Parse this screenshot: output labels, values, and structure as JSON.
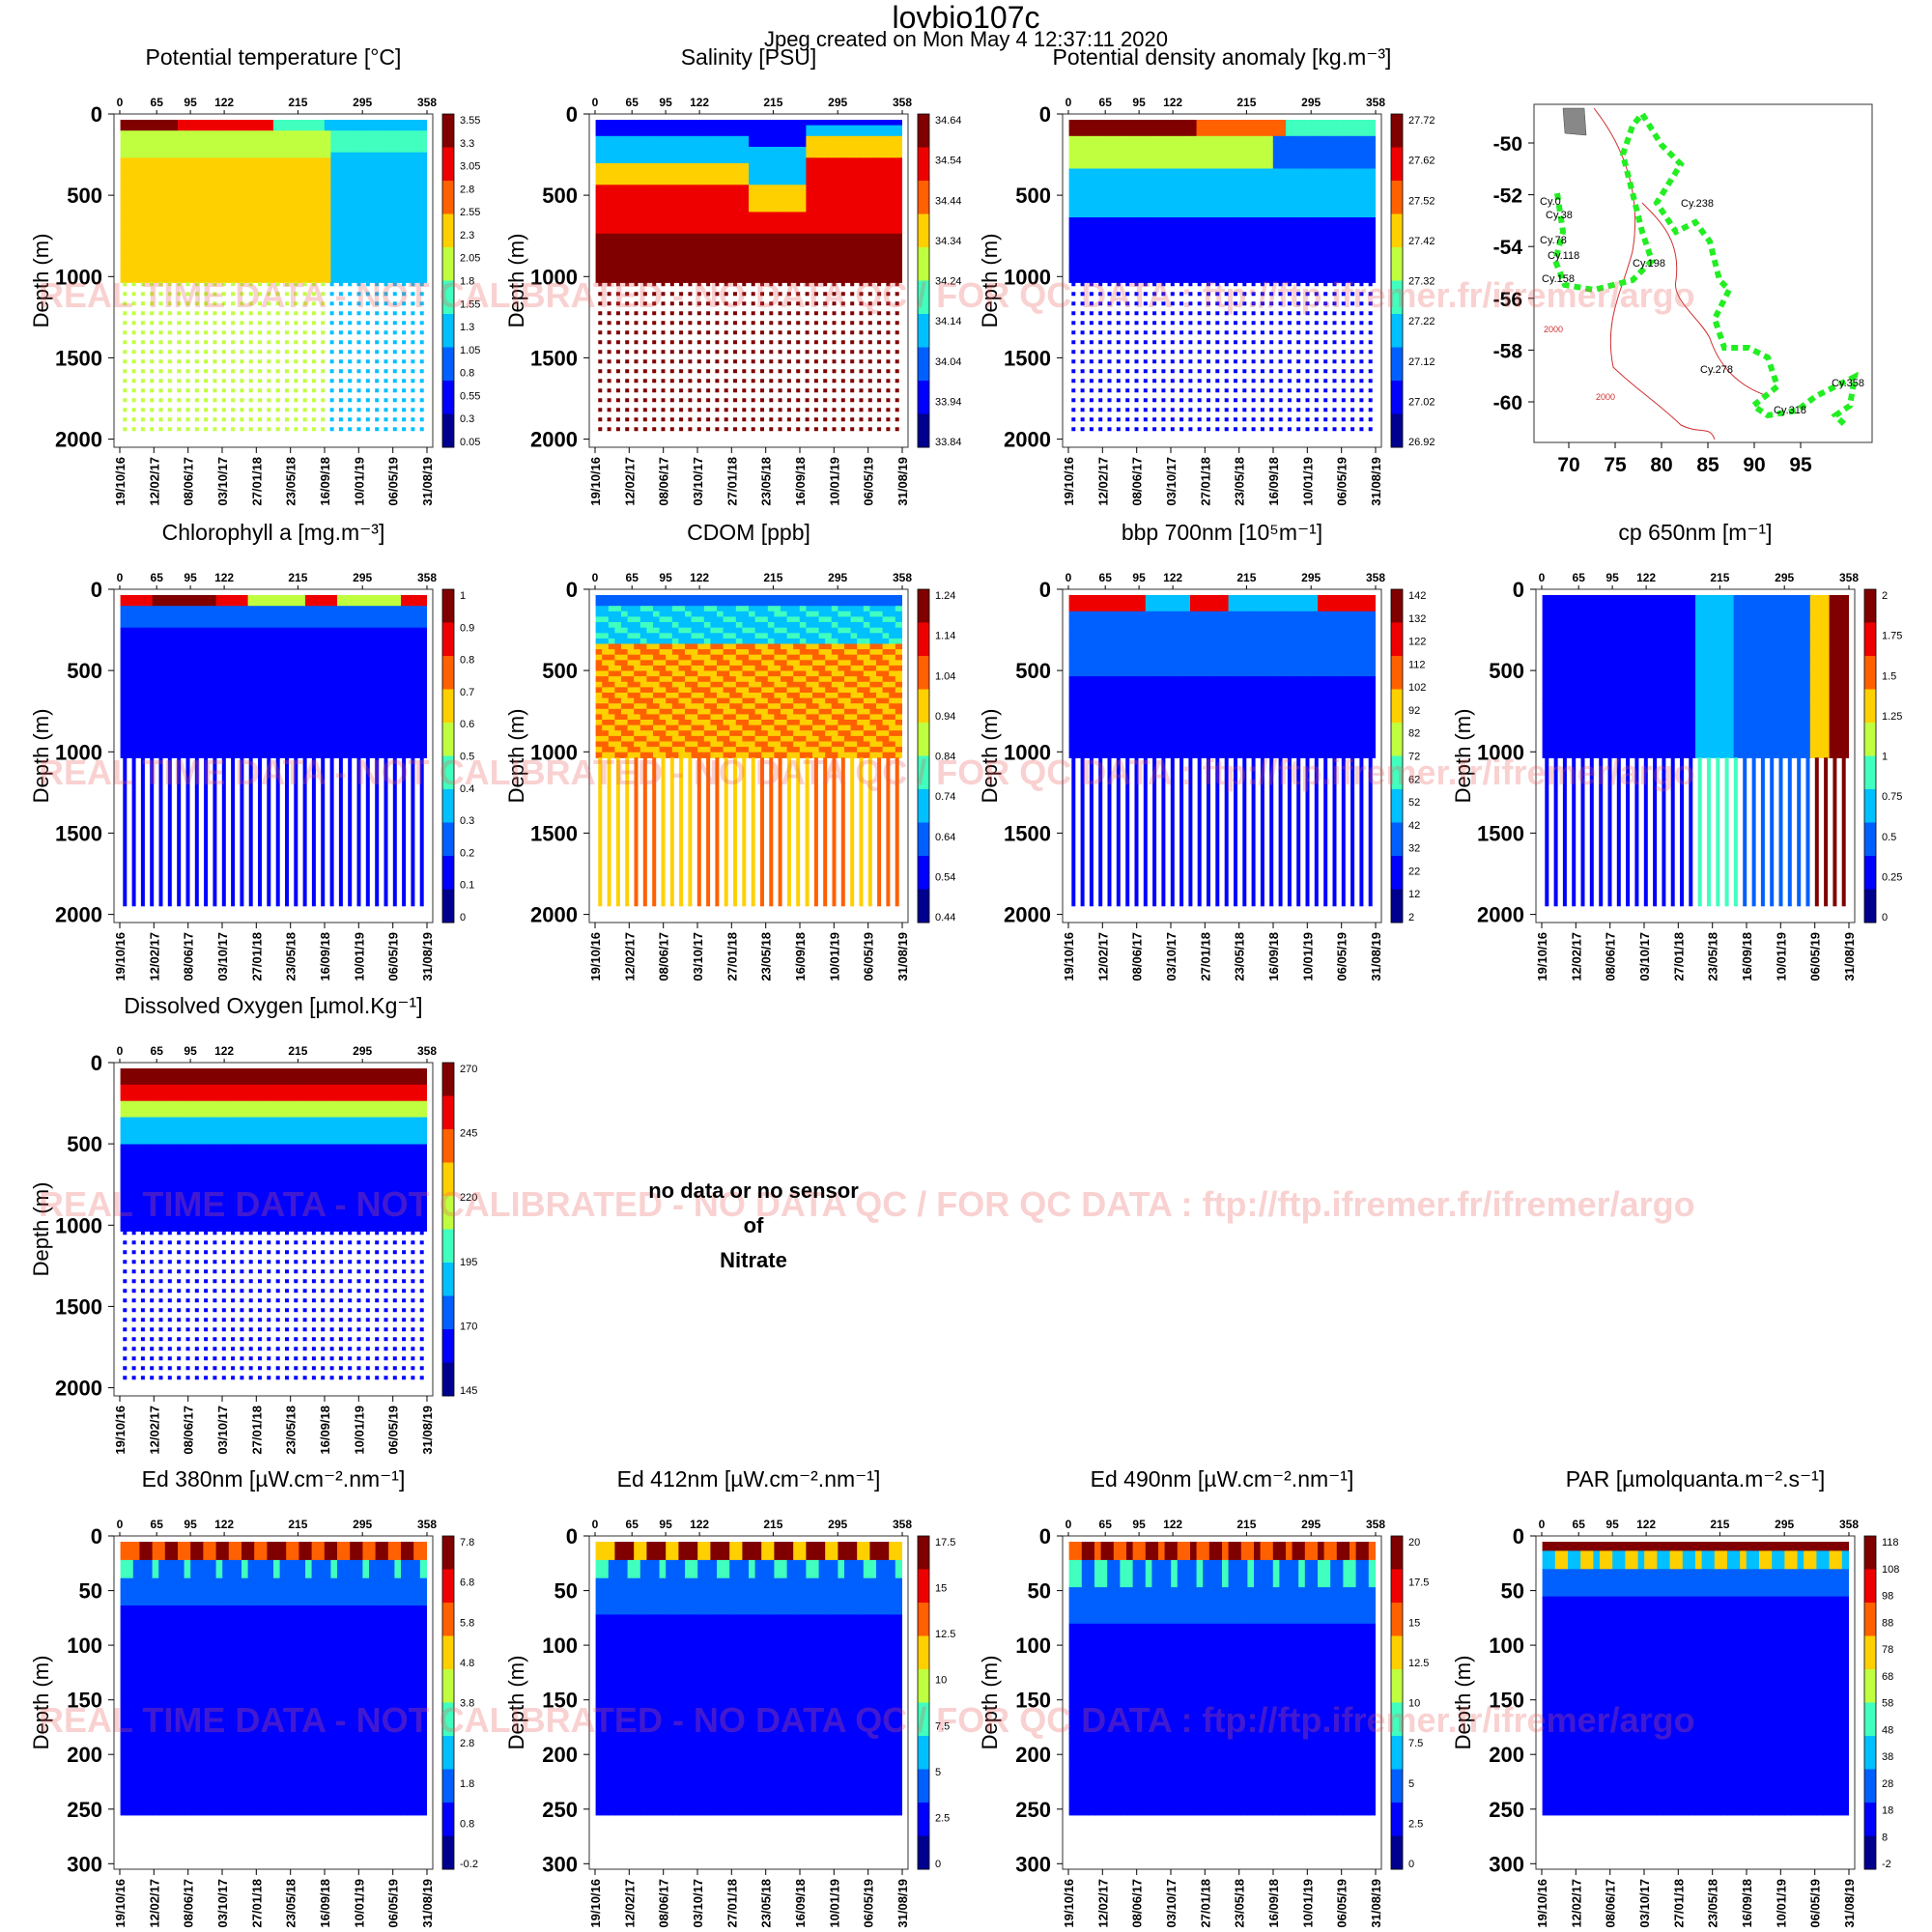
{
  "header": {
    "title": "lovbio107c",
    "subtitle": "Jpeg created on  Mon May  4 12:37:11 2020"
  },
  "watermark": "REAL TIME DATA - NOT CALIBRATED - NO DATA QC   /  FOR QC DATA : ftp://ftp.ifremer.fr/ifremer/argo",
  "no_data": {
    "line1": "no data or no sensor",
    "line2": "of",
    "line3": "Nitrate"
  },
  "common": {
    "top_ticks": [
      "0",
      "65",
      "95",
      "122",
      "215",
      "295",
      "358"
    ],
    "date_ticks": [
      "19/10/16",
      "12/02/17",
      "08/06/17",
      "03/10/17",
      "27/01/18",
      "23/05/18",
      "16/09/18",
      "10/01/19",
      "06/05/19",
      "31/08/19"
    ],
    "ylabel": "Depth (m)",
    "colors": [
      "#00008f",
      "#0000ff",
      "#0060ff",
      "#00c0ff",
      "#40ffbf",
      "#c0ff40",
      "#ffd000",
      "#ff6000",
      "#ef0000",
      "#800000"
    ]
  },
  "chart_data": [
    {
      "id": "temp",
      "type": "heatmap",
      "title": "Potential temperature [°C]",
      "ylim": [
        2050,
        0
      ],
      "yticks": [
        "0",
        "500",
        "1000",
        "1500",
        "2000"
      ],
      "cbar": [
        "3.55",
        "3.3",
        "3.05",
        "2.8",
        "2.55",
        "2.3",
        "2.05",
        "1.8",
        "1.55",
        "1.3",
        "1.05",
        "0.8",
        "0.55",
        "0.3",
        "0.05"
      ]
    },
    {
      "id": "sal",
      "type": "heatmap",
      "title": "Salinity [PSU]",
      "ylim": [
        2050,
        0
      ],
      "yticks": [
        "0",
        "500",
        "1000",
        "1500",
        "2000"
      ],
      "cbar": [
        "34.64",
        "34.54",
        "34.44",
        "34.34",
        "34.24",
        "34.14",
        "34.04",
        "33.94",
        "33.84"
      ]
    },
    {
      "id": "dens",
      "type": "heatmap",
      "title": "Potential density anomaly [kg.m⁻³]",
      "ylim": [
        2050,
        0
      ],
      "yticks": [
        "0",
        "500",
        "1000",
        "1500",
        "2000"
      ],
      "cbar": [
        "27.72",
        "27.62",
        "27.52",
        "27.42",
        "27.32",
        "27.22",
        "27.12",
        "27.02",
        "26.92"
      ]
    },
    {
      "id": "map",
      "type": "scatter",
      "yticks": [
        "-50",
        "-52",
        "-54",
        "-56",
        "-58",
        "-60"
      ],
      "xticks": [
        "70",
        "75",
        "80",
        "85",
        "90",
        "95"
      ],
      "labels": [
        "Cy.0",
        "Cy.38",
        "Cy.78",
        "Cy.118",
        "Cy.158",
        "Cy.198",
        "Cy.238",
        "Cy.278",
        "Cy.318",
        "Cy.358"
      ],
      "contour_labels": [
        "2000",
        "2000"
      ]
    },
    {
      "id": "chla",
      "type": "heatmap",
      "title": "Chlorophyll a [mg.m⁻³]",
      "ylim": [
        2050,
        0
      ],
      "yticks": [
        "0",
        "500",
        "1000",
        "1500",
        "2000"
      ],
      "cbar": [
        "1",
        "0.9",
        "0.8",
        "0.7",
        "0.6",
        "0.5",
        "0.4",
        "0.3",
        "0.2",
        "0.1",
        "0"
      ]
    },
    {
      "id": "cdom",
      "type": "heatmap",
      "title": "CDOM  [ppb]",
      "ylim": [
        2050,
        0
      ],
      "yticks": [
        "0",
        "500",
        "1000",
        "1500",
        "2000"
      ],
      "cbar": [
        "1.24",
        "1.14",
        "1.04",
        "0.94",
        "0.84",
        "0.74",
        "0.64",
        "0.54",
        "0.44"
      ]
    },
    {
      "id": "bbp",
      "type": "heatmap",
      "title": "bbp 700nm [10⁵m⁻¹]",
      "ylim": [
        2050,
        0
      ],
      "yticks": [
        "0",
        "500",
        "1000",
        "1500",
        "2000"
      ],
      "cbar": [
        "142",
        "132",
        "122",
        "112",
        "102",
        "92",
        "82",
        "72",
        "62",
        "52",
        "42",
        "32",
        "22",
        "12",
        "2"
      ]
    },
    {
      "id": "cp",
      "type": "heatmap",
      "title": "cp 650nm [m⁻¹]",
      "ylim": [
        2050,
        0
      ],
      "yticks": [
        "0",
        "500",
        "1000",
        "1500",
        "2000"
      ],
      "cbar": [
        "2",
        "1.75",
        "1.5",
        "1.25",
        "1",
        "0.75",
        "0.5",
        "0.25",
        "0"
      ]
    },
    {
      "id": "oxy",
      "type": "heatmap",
      "title": "Dissolved Oxygen [µmol.Kg⁻¹]",
      "ylim": [
        2050,
        0
      ],
      "yticks": [
        "0",
        "500",
        "1000",
        "1500",
        "2000"
      ],
      "cbar": [
        "270",
        "245",
        "220",
        "195",
        "170",
        "145"
      ]
    },
    {
      "id": "ed380",
      "type": "heatmap",
      "title": "Ed 380nm [µW.cm⁻².nm⁻¹]",
      "ylim": [
        305,
        0
      ],
      "yticks": [
        "0",
        "50",
        "100",
        "150",
        "200",
        "250",
        "300"
      ],
      "cbar": [
        "7.8",
        "6.8",
        "5.8",
        "4.8",
        "3.8",
        "2.8",
        "1.8",
        "0.8",
        "-0.2"
      ]
    },
    {
      "id": "ed412",
      "type": "heatmap",
      "title": "Ed 412nm [µW.cm⁻².nm⁻¹]",
      "ylim": [
        305,
        0
      ],
      "yticks": [
        "0",
        "50",
        "100",
        "150",
        "200",
        "250",
        "300"
      ],
      "cbar": [
        "17.5",
        "15",
        "12.5",
        "10",
        "7.5",
        "5",
        "2.5",
        "0"
      ]
    },
    {
      "id": "ed490",
      "type": "heatmap",
      "title": "Ed 490nm [µW.cm⁻².nm⁻¹]",
      "ylim": [
        305,
        0
      ],
      "yticks": [
        "0",
        "50",
        "100",
        "150",
        "200",
        "250",
        "300"
      ],
      "cbar": [
        "20",
        "17.5",
        "15",
        "12.5",
        "10",
        "7.5",
        "5",
        "2.5",
        "0"
      ]
    },
    {
      "id": "par",
      "type": "heatmap",
      "title": "PAR [µmolquanta.m⁻².s⁻¹]",
      "ylim": [
        305,
        0
      ],
      "yticks": [
        "0",
        "50",
        "100",
        "150",
        "200",
        "250",
        "300"
      ],
      "cbar": [
        "118",
        "108",
        "98",
        "88",
        "78",
        "68",
        "58",
        "48",
        "38",
        "28",
        "18",
        "8",
        "-2"
      ]
    }
  ]
}
